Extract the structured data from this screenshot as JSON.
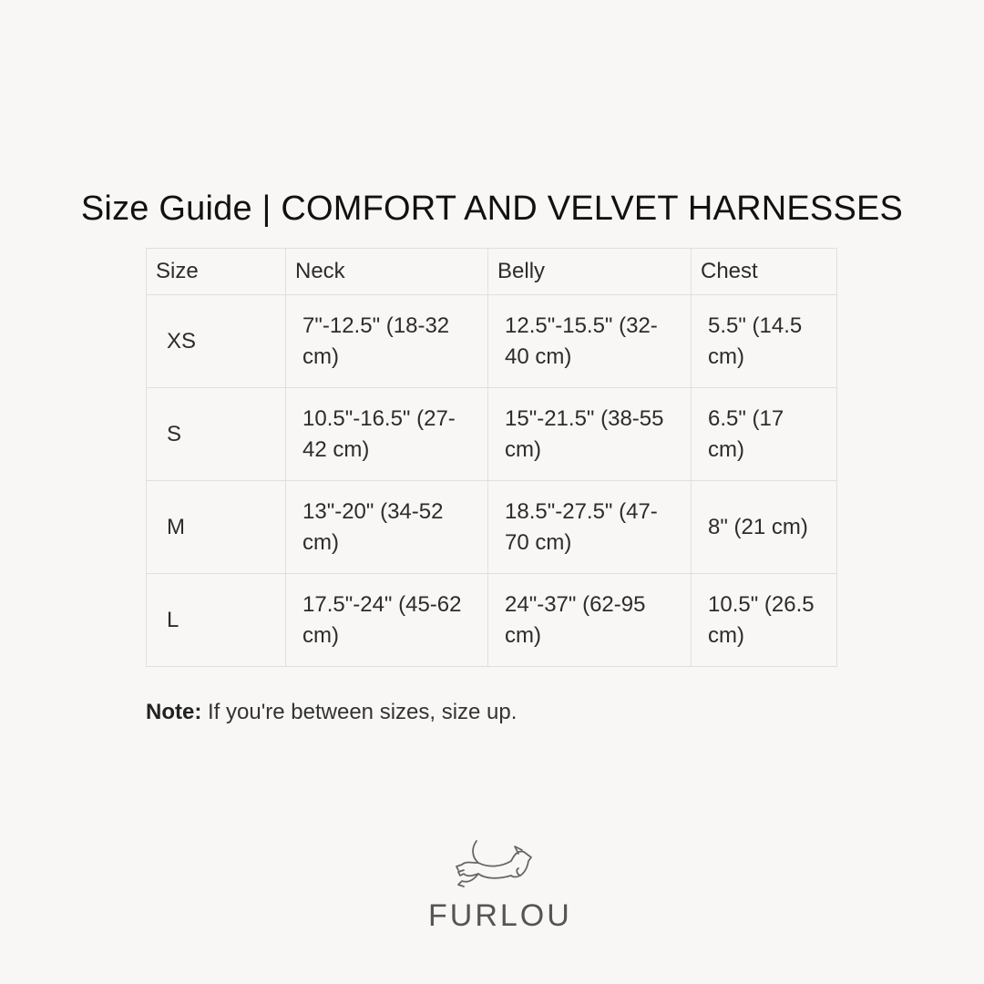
{
  "title": "Size Guide | COMFORT AND VELVET HARNESSES",
  "table": {
    "headers": [
      "Size",
      "Neck",
      "Belly",
      "Chest"
    ],
    "rows": [
      [
        "XS",
        "7\"-12.5\" (18-32 cm)",
        "12.5\"-15.5\" (32-40 cm)",
        "5.5\" (14.5 cm)"
      ],
      [
        "S",
        "10.5\"-16.5\" (27-42 cm)",
        "15\"-21.5\" (38-55 cm)",
        "6.5\" (17 cm)"
      ],
      [
        "M",
        "13\"-20\" (34-52 cm)",
        "18.5\"-27.5\" (47-70 cm)",
        "8\" (21 cm)"
      ],
      [
        "L",
        "17.5\"-24\" (45-62 cm)",
        "24\"-37\" (62-95 cm)",
        "10.5\" (26.5 cm)"
      ]
    ]
  },
  "note": {
    "label": "Note:",
    "text": " If you're between sizes, size up."
  },
  "logo": {
    "text": "FURLOU",
    "icon": "running-dog-icon"
  }
}
